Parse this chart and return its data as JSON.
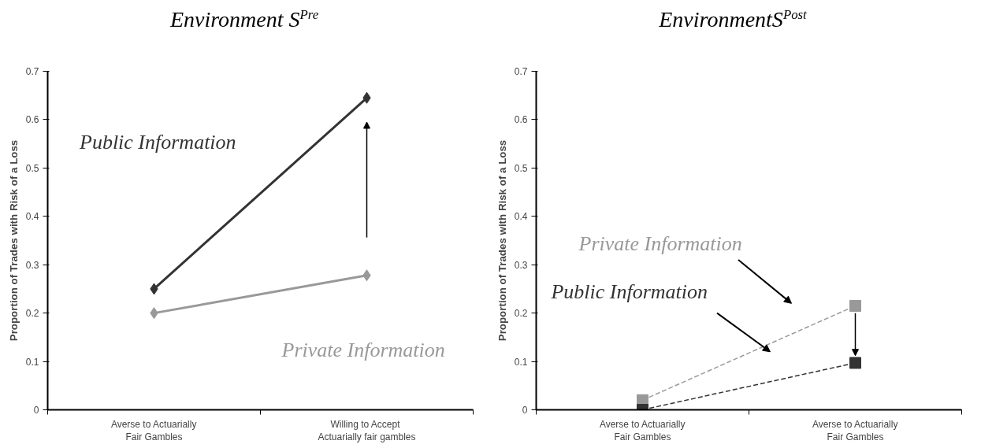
{
  "chart_data": [
    {
      "type": "line",
      "title": "Environment S$^{Pre}$",
      "ylabel": "Proportion of Trades with Risk of a Loss",
      "categories": [
        "Averse to Actuarially\nFair Gambles",
        "Willing to  Accept\nActuarially fair gambles"
      ],
      "ylim": [
        0,
        0.7
      ],
      "yticks": [
        0,
        0.1,
        0.2,
        0.3,
        0.4,
        0.5,
        0.6,
        0.7
      ],
      "grid": false,
      "marker": "diamond",
      "line_style": "solid",
      "series": [
        {
          "name": "Public Information",
          "color": "#333333",
          "values": [
            0.25,
            0.645
          ]
        },
        {
          "name": "Private Information",
          "color": "#999999",
          "values": [
            0.2,
            0.278
          ]
        }
      ]
    },
    {
      "type": "line",
      "title": "EnvironmentS$^{Post}$",
      "ylabel": "Proportion of Trades with Risk of a Loss",
      "categories": [
        "Averse to Actuarially\nFair Gambles",
        "Averse to Actuarially\nFair Gambles"
      ],
      "ylim": [
        0,
        0.7
      ],
      "yticks": [
        0,
        0.1,
        0.2,
        0.3,
        0.4,
        0.5,
        0.6,
        0.7
      ],
      "grid": false,
      "marker": "square",
      "line_style": "dashed",
      "series": [
        {
          "name": "Private Information",
          "color": "#999999",
          "values": [
            0.02,
            0.215
          ]
        },
        {
          "name": "Public Information",
          "color": "#333333",
          "values": [
            0.0,
            0.097
          ]
        }
      ]
    }
  ]
}
